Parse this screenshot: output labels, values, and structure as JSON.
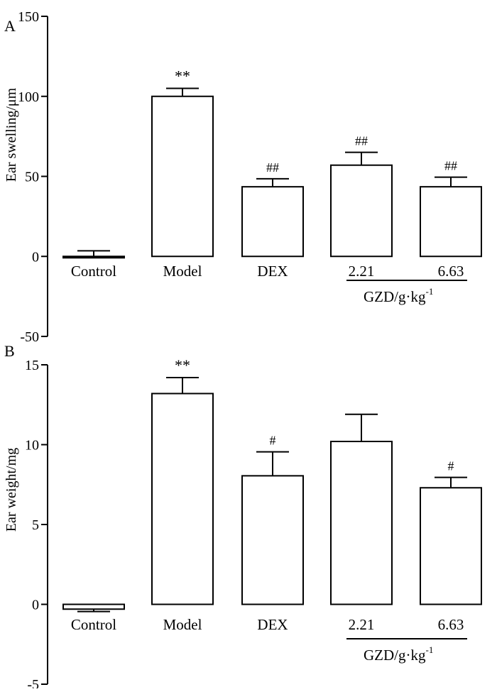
{
  "chart_data": [
    {
      "type": "bar",
      "panel_label": "A",
      "ylabel": "Ear swelling/μm",
      "ylim": [
        -50,
        150
      ],
      "yticks": [
        150,
        100,
        50,
        0,
        -50
      ],
      "categories": [
        "Control",
        "Model",
        "DEX",
        "2.21",
        "6.63"
      ],
      "values": [
        0,
        100,
        43.5,
        57,
        43.5
      ],
      "errors": [
        3.5,
        5,
        5,
        8,
        6
      ],
      "annotations": [
        "",
        "**",
        "##",
        "##",
        "##"
      ],
      "group_label": "GZD/g·kg",
      "group_label_sup": "-1",
      "grid": false
    },
    {
      "type": "bar",
      "panel_label": "B",
      "ylabel": "Ear weight/mg",
      "ylim": [
        -5,
        15
      ],
      "yticks": [
        15,
        10,
        5,
        0,
        -5
      ],
      "categories": [
        "Control",
        "Model",
        "DEX",
        "2.21",
        "6.63"
      ],
      "values": [
        -0.3,
        13.2,
        8.05,
        10.2,
        7.3
      ],
      "errors": [
        0.15,
        1,
        1.5,
        1.7,
        0.65
      ],
      "annotations": [
        "",
        "**",
        "#",
        "",
        "#"
      ],
      "group_label": "GZD/g·kg",
      "group_label_sup": "-1",
      "grid": false
    }
  ]
}
